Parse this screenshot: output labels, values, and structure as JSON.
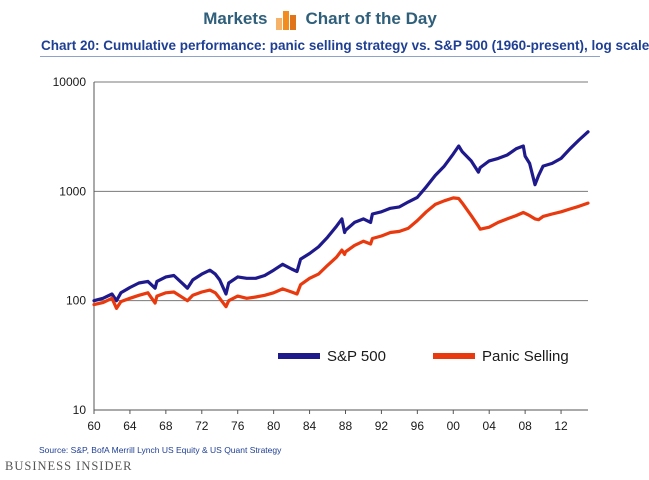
{
  "header": {
    "left_label": "Markets",
    "right_label": "Chart of the Day"
  },
  "footer": {
    "source": "Source: S&P, BofA Merrill Lynch US Equity & US Quant Strategy",
    "brand": "BUSINESS INSIDER"
  },
  "colors": {
    "sp500": "#1f1a8c",
    "panic": "#e83a0e",
    "banner_text": "#2f5f7a",
    "title": "#1f3f94",
    "icon_orange": "#f28c1f"
  },
  "chart_data": {
    "type": "line",
    "title": "Chart 20: Cumulative performance: panic selling strategy vs. S&P 500 (1960-present), log scale",
    "xlabel": "",
    "ylabel": "",
    "y_scale": "log",
    "ylim": [
      10,
      10000
    ],
    "xlim": [
      1960,
      2015
    ],
    "x_tick_labels": [
      "60",
      "64",
      "68",
      "72",
      "76",
      "80",
      "84",
      "88",
      "92",
      "96",
      "00",
      "04",
      "08",
      "12"
    ],
    "y_tick_labels": [
      "10",
      "100",
      "1000",
      "10000"
    ],
    "grid": "horizontal",
    "legend_position": "lower-center",
    "series": [
      {
        "name": "S&P 500",
        "color": "#1f1a8c",
        "x": [
          1960,
          1961,
          1962,
          1962.5,
          1963,
          1964,
          1965,
          1966,
          1966.8,
          1967,
          1968,
          1968.9,
          1970,
          1970.4,
          1971,
          1972,
          1972.9,
          1973.5,
          1974,
          1974.7,
          1975,
          1976,
          1977,
          1978,
          1979,
          1980,
          1981,
          1982,
          1982.6,
          1983,
          1984,
          1985,
          1986,
          1987,
          1987.6,
          1987.9,
          1988,
          1989,
          1990,
          1990.8,
          1991,
          1992,
          1993,
          1994,
          1995,
          1996,
          1997,
          1998,
          1999,
          2000,
          2000.6,
          2001,
          2002,
          2002.8,
          2003,
          2004,
          2005,
          2006,
          2007,
          2007.8,
          2008,
          2008.5,
          2009.1,
          2009.5,
          2010,
          2011,
          2012,
          2013,
          2014,
          2015
        ],
        "values": [
          100,
          105,
          115,
          100,
          118,
          132,
          145,
          150,
          130,
          150,
          165,
          170,
          140,
          130,
          155,
          175,
          190,
          175,
          155,
          115,
          145,
          165,
          160,
          160,
          170,
          190,
          215,
          195,
          185,
          240,
          270,
          310,
          380,
          480,
          560,
          420,
          440,
          520,
          560,
          520,
          620,
          650,
          700,
          720,
          800,
          880,
          1100,
          1400,
          1700,
          2200,
          2600,
          2300,
          1900,
          1500,
          1650,
          1900,
          2000,
          2150,
          2450,
          2600,
          2100,
          1800,
          1150,
          1400,
          1700,
          1800,
          2000,
          2450,
          2950,
          3500
        ]
      },
      {
        "name": "Panic Selling",
        "color": "#e83a0e",
        "x": [
          1960,
          1961,
          1962,
          1962.5,
          1963,
          1964,
          1965,
          1966,
          1966.8,
          1967,
          1968,
          1968.9,
          1970,
          1970.4,
          1971,
          1972,
          1972.9,
          1973.5,
          1974,
          1974.7,
          1975,
          1976,
          1977,
          1978,
          1979,
          1980,
          1981,
          1982,
          1982.6,
          1983,
          1984,
          1985,
          1986,
          1987,
          1987.6,
          1987.9,
          1988,
          1989,
          1990,
          1990.8,
          1991,
          1992,
          1993,
          1994,
          1995,
          1996,
          1997,
          1998,
          1999,
          2000,
          2000.6,
          2001,
          2002,
          2002.8,
          2003,
          2004,
          2005,
          2006,
          2007,
          2007.8,
          2008,
          2008.5,
          2009.1,
          2009.5,
          2010,
          2011,
          2012,
          2013,
          2014,
          2015
        ],
        "values": [
          92,
          96,
          105,
          85,
          98,
          105,
          112,
          118,
          95,
          110,
          118,
          120,
          105,
          100,
          112,
          120,
          125,
          118,
          105,
          88,
          100,
          110,
          105,
          108,
          112,
          118,
          128,
          120,
          115,
          140,
          160,
          175,
          210,
          250,
          290,
          265,
          280,
          320,
          350,
          330,
          370,
          390,
          420,
          430,
          460,
          540,
          650,
          760,
          820,
          870,
          860,
          780,
          600,
          480,
          450,
          470,
          520,
          560,
          600,
          640,
          630,
          600,
          560,
          550,
          590,
          620,
          650,
          690,
          730,
          780
        ]
      }
    ]
  }
}
